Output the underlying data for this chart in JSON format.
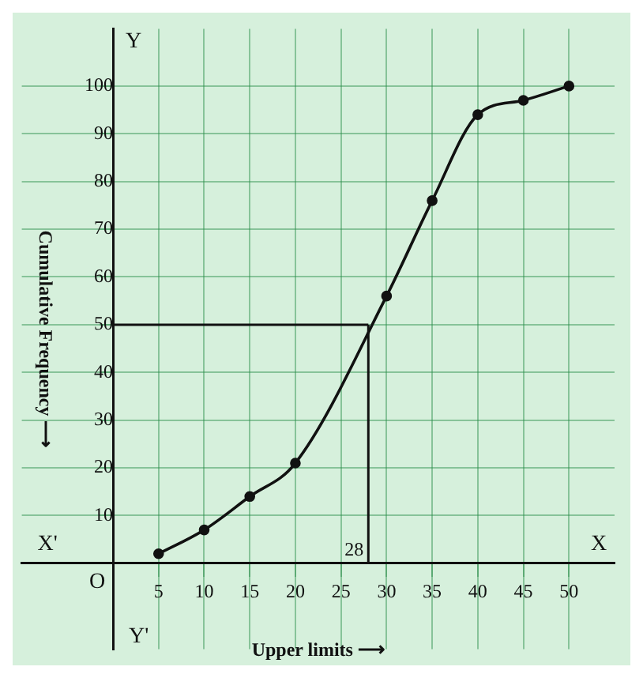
{
  "chart_data": {
    "type": "line",
    "xlabel": "Upper limits ⟶",
    "ylabel": "Cumulative Frequency ⟶",
    "x": [
      5,
      10,
      15,
      20,
      30,
      35,
      40,
      45,
      50
    ],
    "series": [
      {
        "color": "#111111",
        "values": [
          2,
          7,
          14,
          21,
          56,
          76,
          94,
          97,
          100
        ]
      }
    ],
    "xlim": [
      -10,
      55
    ],
    "ylim": [
      -18,
      112
    ],
    "xticks": [
      5,
      10,
      15,
      20,
      25,
      30,
      35,
      40,
      45,
      50
    ],
    "yticks": [
      10,
      20,
      30,
      40,
      50,
      60,
      70,
      80,
      90,
      100
    ],
    "ref_lines": [
      {
        "axis": "y",
        "value": 50
      },
      {
        "axis": "x",
        "value": 28,
        "label": "28"
      }
    ],
    "annotations": [
      "X'",
      "X",
      "Y",
      "Y'",
      "O"
    ],
    "grid": true,
    "marker": "circle",
    "line_style": "solid",
    "legend": false
  }
}
